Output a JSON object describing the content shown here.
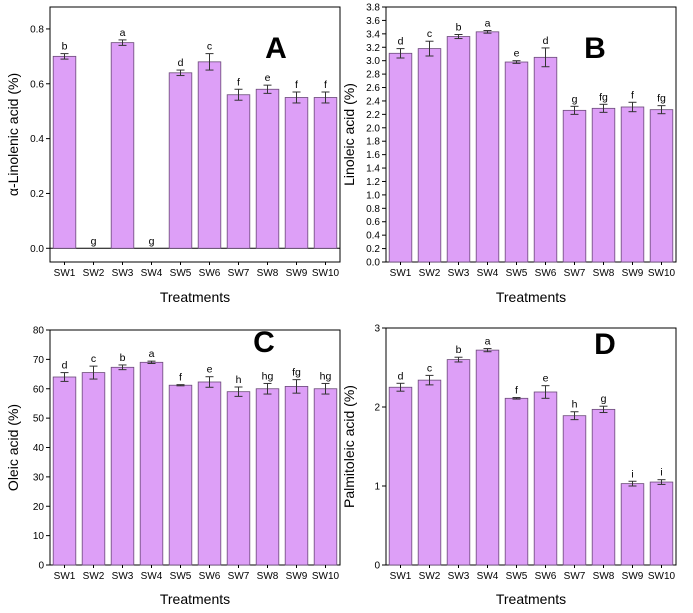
{
  "bar_color": "#dd9ff7",
  "bar_stroke": "#6a4a78",
  "chart_data": [
    {
      "type": "bar",
      "panel_label": "A",
      "xlabel": "Treatments",
      "ylabel": "α-Linolenic acid (%)",
      "ylim": [
        -0.05,
        0.88
      ],
      "yticks": [
        "0.0",
        "0.2",
        "0.4",
        "0.6",
        "0.8"
      ],
      "ytick_values": [
        0,
        0.2,
        0.4,
        0.6,
        0.8
      ],
      "categories": [
        "SW1",
        "SW2",
        "SW3",
        "SW4",
        "SW5",
        "SW6",
        "SW7",
        "SW8",
        "SW9",
        "SW10"
      ],
      "values": [
        0.7,
        0,
        0.75,
        0,
        0.64,
        0.68,
        0.56,
        0.58,
        0.55,
        0.55
      ],
      "errors": [
        0.01,
        0,
        0.01,
        0,
        0.01,
        0.03,
        0.02,
        0.015,
        0.02,
        0.02
      ],
      "letters": [
        "b",
        "g",
        "a",
        "g",
        "d",
        "c",
        "f",
        "e",
        "f",
        "f"
      ]
    },
    {
      "type": "bar",
      "panel_label": "B",
      "xlabel": "Treatments",
      "ylabel": "Linoleic acid (%)",
      "ylim": [
        0,
        3.8
      ],
      "yticks": [
        "0.0",
        "0.2",
        "0.4",
        "0.6",
        "0.8",
        "1.0",
        "1.2",
        "1.4",
        "1.6",
        "1.8",
        "2.0",
        "2.2",
        "2.4",
        "2.6",
        "2.8",
        "3.0",
        "3.2",
        "3.4",
        "3.6",
        "3.8"
      ],
      "ytick_values": [
        0,
        0.2,
        0.4,
        0.6,
        0.8,
        1.0,
        1.2,
        1.4,
        1.6,
        1.8,
        2.0,
        2.2,
        2.4,
        2.6,
        2.8,
        3.0,
        3.2,
        3.4,
        3.6,
        3.8
      ],
      "categories": [
        "SW1",
        "SW2",
        "SW3",
        "SW4",
        "SW5",
        "SW6",
        "SW7",
        "SW8",
        "SW9",
        "SW10"
      ],
      "values": [
        3.11,
        3.18,
        3.36,
        3.43,
        2.98,
        3.05,
        2.26,
        2.29,
        2.31,
        2.27
      ],
      "errors": [
        0.07,
        0.11,
        0.03,
        0.02,
        0.02,
        0.14,
        0.06,
        0.06,
        0.07,
        0.06
      ],
      "letters": [
        "d",
        "c",
        "b",
        "a",
        "e",
        "d",
        "g",
        "fg",
        "f",
        "fg"
      ]
    },
    {
      "type": "bar",
      "panel_label": "C",
      "xlabel": "Treatments",
      "ylabel": "Oleic acid (%)",
      "ylim": [
        0,
        80
      ],
      "yticks": [
        "0",
        "10",
        "20",
        "30",
        "40",
        "50",
        "60",
        "70",
        "80"
      ],
      "ytick_values": [
        0,
        10,
        20,
        30,
        40,
        50,
        60,
        70,
        80
      ],
      "categories": [
        "SW1",
        "SW2",
        "SW3",
        "SW4",
        "SW5",
        "SW6",
        "SW7",
        "SW8",
        "SW9",
        "SW10"
      ],
      "values": [
        64,
        65.5,
        67.3,
        69,
        61.2,
        62.3,
        59,
        60,
        60.8,
        60
      ],
      "errors": [
        1.5,
        2.2,
        0.8,
        0.4,
        0.2,
        1.8,
        1.6,
        1.8,
        2.3,
        1.8
      ],
      "letters": [
        "d",
        "c",
        "b",
        "a",
        "f",
        "e",
        "h",
        "hg",
        "fg",
        "hg"
      ]
    },
    {
      "type": "bar",
      "panel_label": "D",
      "xlabel": "Treatments",
      "ylabel": "Palmitoleic acid (%)",
      "ylim": [
        0,
        3
      ],
      "yticks": [
        "0",
        "1",
        "2",
        "3"
      ],
      "ytick_values": [
        0,
        1,
        2,
        3
      ],
      "categories": [
        "SW1",
        "SW2",
        "SW3",
        "SW4",
        "SW5",
        "SW6",
        "SW7",
        "SW8",
        "SW9",
        "SW10"
      ],
      "values": [
        2.25,
        2.34,
        2.6,
        2.72,
        2.11,
        2.19,
        1.89,
        1.97,
        1.03,
        1.05
      ],
      "errors": [
        0.05,
        0.06,
        0.03,
        0.02,
        0.01,
        0.08,
        0.05,
        0.04,
        0.03,
        0.03
      ],
      "letters": [
        "d",
        "c",
        "b",
        "a",
        "f",
        "e",
        "h",
        "g",
        "i",
        "i"
      ]
    }
  ]
}
